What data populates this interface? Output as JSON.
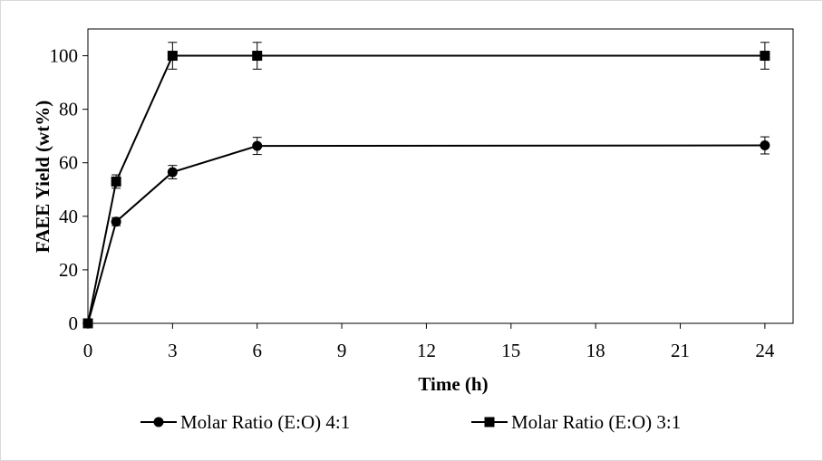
{
  "chart_data": {
    "type": "line",
    "title": "",
    "xlabel": "Time (h)",
    "ylabel": "FAEE Yield (wt%)",
    "xlim": [
      0,
      25
    ],
    "ylim": [
      0,
      110
    ],
    "xticks": [
      0,
      3,
      6,
      9,
      12,
      15,
      18,
      21,
      24
    ],
    "yticks": [
      0,
      20,
      40,
      60,
      80,
      100
    ],
    "grid": false,
    "legend_position": "bottom",
    "series": [
      {
        "name": "Molar Ratio (E:O) 4:1",
        "marker": "circle",
        "color": "#000000",
        "x": [
          0,
          1,
          3,
          6,
          24
        ],
        "y": [
          0,
          38,
          56.5,
          66.3,
          66.5
        ],
        "error": [
          0,
          1.5,
          2.5,
          3.2,
          3.2
        ]
      },
      {
        "name": "Molar Ratio (E:O) 3:1",
        "marker": "square",
        "color": "#000000",
        "x": [
          0,
          1,
          3,
          6,
          24
        ],
        "y": [
          0,
          53,
          100,
          100,
          100
        ],
        "error": [
          0,
          2.5,
          5,
          5,
          5
        ]
      }
    ]
  }
}
